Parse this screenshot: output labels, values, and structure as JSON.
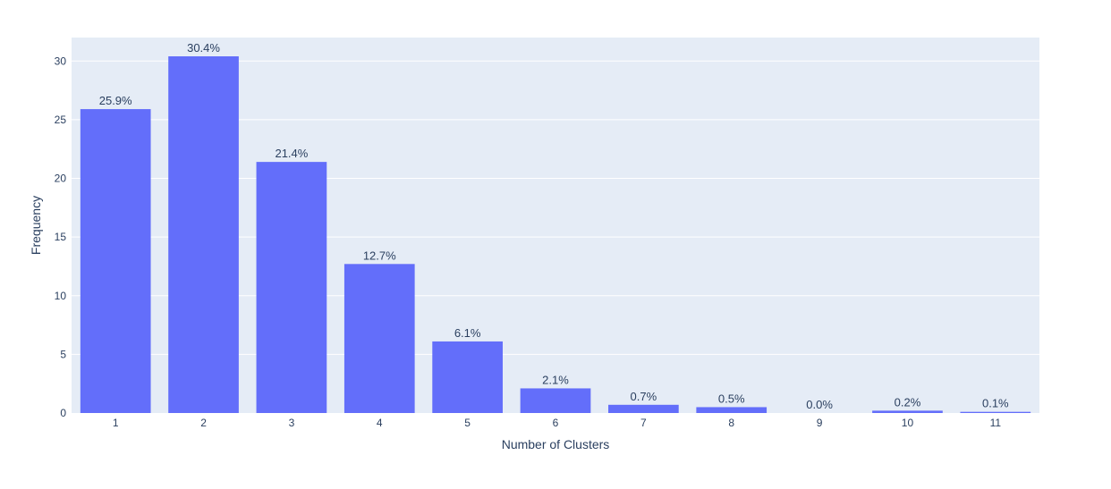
{
  "colors": {
    "bar": "#636efa",
    "plot_bg": "#e5ecf6",
    "grid": "#ffffff",
    "text": "#2a3f5f"
  },
  "chart_data": {
    "type": "bar",
    "categories": [
      "1",
      "2",
      "3",
      "4",
      "5",
      "6",
      "7",
      "8",
      "9",
      "10",
      "11"
    ],
    "values": [
      25.9,
      30.4,
      21.4,
      12.7,
      6.1,
      2.1,
      0.7,
      0.5,
      0.0,
      0.2,
      0.1
    ],
    "data_labels": [
      "25.9%",
      "30.4%",
      "21.4%",
      "12.7%",
      "6.1%",
      "2.1%",
      "0.7%",
      "0.5%",
      "0.0%",
      "0.2%",
      "0.1%"
    ],
    "xlabel": "Number of Clusters",
    "ylabel": "Frequency",
    "ylim": [
      0,
      32
    ],
    "yticks": [
      0,
      5,
      10,
      15,
      20,
      25,
      30
    ],
    "grid": true
  }
}
